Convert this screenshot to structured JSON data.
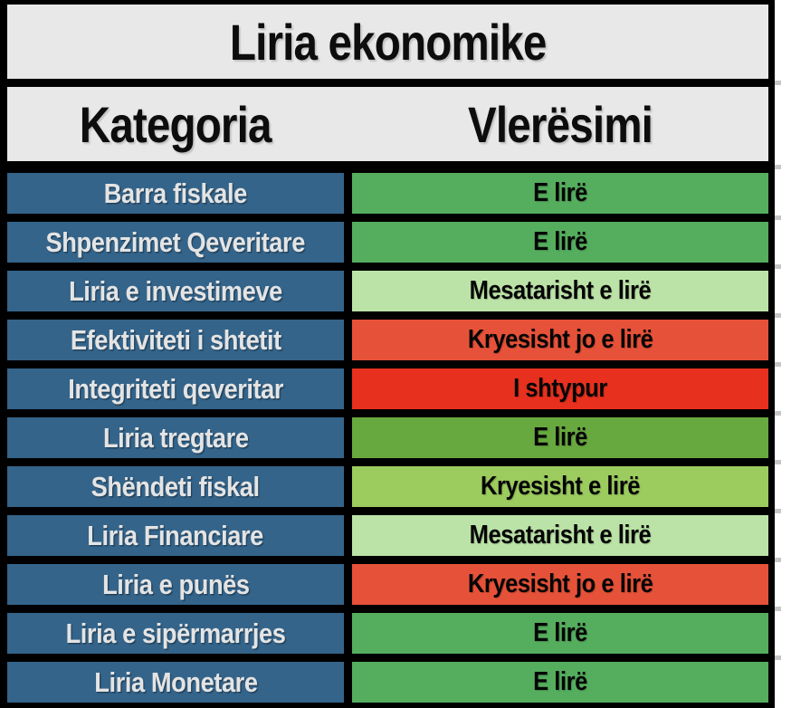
{
  "title": "Liria ekonomike",
  "columns": {
    "category": "Kategoria",
    "rating": "Vlerësimi"
  },
  "rows": [
    {
      "category": "Barra fiskale",
      "rating": "E lirë",
      "color": "#55ad5e"
    },
    {
      "category": "Shpenzimet Qeveritare",
      "rating": "E lirë",
      "color": "#55ad5e"
    },
    {
      "category": "Liria e investimeve",
      "rating": "Mesatarisht e lirë",
      "color": "#bce3a7"
    },
    {
      "category": "Efektiviteti i shtetit",
      "rating": "Kryesisht jo e lirë",
      "color": "#e65239"
    },
    {
      "category": "Integriteti qeveritar",
      "rating": "I shtypur",
      "color": "#e8301f"
    },
    {
      "category": "Liria tregtare",
      "rating": "E lirë",
      "color": "#68a93f"
    },
    {
      "category": "Shëndeti fiskal",
      "rating": "Kryesisht e lirë",
      "color": "#9ccb5e"
    },
    {
      "category": "Liria Financiare",
      "rating": "Mesatarisht e lirë",
      "color": "#bce3a7"
    },
    {
      "category": "Liria e punës",
      "rating": "Kryesisht jo e lirë",
      "color": "#e65239"
    },
    {
      "category": "Liria e sipërmarrjes",
      "rating": "E lirë",
      "color": "#55ad5e"
    },
    {
      "category": "Liria Monetare",
      "rating": "E lirë",
      "color": "#55ad5e"
    }
  ],
  "palette": {
    "border": "#000000",
    "header_bg": "#e8e8e8",
    "category_bg": "#34648a",
    "category_text": "#e4e4e4",
    "free": "#55ad5e",
    "free_olive": "#68a93f",
    "mostly_free": "#9ccb5e",
    "moderately_free": "#bce3a7",
    "mostly_unfree": "#e65239",
    "repressed": "#e8301f"
  },
  "chart_data": {
    "type": "table",
    "title": "Liria ekonomike",
    "columns": [
      "Kategoria",
      "Vlerësimi"
    ],
    "rows": [
      [
        "Barra fiskale",
        "E lirë"
      ],
      [
        "Shpenzimet Qeveritare",
        "E lirë"
      ],
      [
        "Liria e investimeve",
        "Mesatarisht e lirë"
      ],
      [
        "Efektiviteti i shtetit",
        "Kryesisht jo e lirë"
      ],
      [
        "Integriteti qeveritar",
        "I shtypur"
      ],
      [
        "Liria tregtare",
        "E lirë"
      ],
      [
        "Shëndeti fiskal",
        "Kryesisht e lirë"
      ],
      [
        "Liria Financiare",
        "Mesatarisht e lirë"
      ],
      [
        "Liria e punës",
        "Kryesisht jo e lirë"
      ],
      [
        "Liria e sipërmarrjes",
        "E lirë"
      ],
      [
        "Liria Monetare",
        "E lirë"
      ]
    ],
    "rating_scale": [
      "I shtypur",
      "Kryesisht jo e lirë",
      "Mesatarisht e lirë",
      "Kryesisht e lirë",
      "E lirë"
    ]
  }
}
